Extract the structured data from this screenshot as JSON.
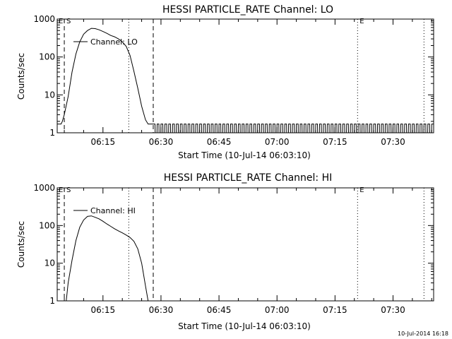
{
  "chart_data": [
    {
      "type": "line",
      "title": "HESSI PARTICLE_RATE Channel: LO",
      "xlabel": "Start Time (10-Jul-14 06:03:10)",
      "ylabel": "Counts/sec",
      "y_scale": "log",
      "ylim": [
        1,
        1000
      ],
      "xlim": [
        "06:03:10",
        "07:40:30"
      ],
      "x_ticks": [
        "06:15",
        "06:30",
        "06:45",
        "07:00",
        "07:15",
        "07:30"
      ],
      "y_ticks": [
        "1",
        "10",
        "100",
        "1000"
      ],
      "legend": {
        "entries": [
          "Channel: LO"
        ],
        "placement": "top-left"
      },
      "grid": false,
      "vlines": [
        {
          "time": "06:05:00",
          "style": "dashed",
          "label": "S"
        },
        {
          "time": "06:21:40",
          "style": "dotted",
          "label": ""
        },
        {
          "time": "06:28:00",
          "style": "dashed",
          "label": ""
        },
        {
          "time": "07:20:50",
          "style": "dotted",
          "label": "E"
        },
        {
          "time": "07:38:00",
          "style": "dotted",
          "label": ""
        }
      ],
      "series": [
        {
          "name": "Channel: LO",
          "x": [
            "06:03:10",
            "06:04:10",
            "06:04:30",
            "06:05:00",
            "06:06:00",
            "06:07:00",
            "06:08:00",
            "06:09:00",
            "06:10:00",
            "06:11:00",
            "06:12:00",
            "06:13:00",
            "06:14:00",
            "06:15:00",
            "06:16:00",
            "06:17:00",
            "06:18:00",
            "06:19:00",
            "06:20:00",
            "06:21:00",
            "06:22:00",
            "06:23:00",
            "06:24:00",
            "06:25:00",
            "06:26:00",
            "06:26:40",
            "06:27:00",
            "06:27:20",
            "06:28:00"
          ],
          "y": [
            1.7,
            1.7,
            2.0,
            3.0,
            9,
            40,
            120,
            250,
            400,
            500,
            570,
            560,
            520,
            470,
            420,
            370,
            340,
            300,
            250,
            190,
            110,
            42,
            15,
            5,
            2.2,
            1.7,
            1.7,
            1.7,
            1.7
          ]
        },
        {
          "name": "Channel: LO",
          "segment": "background (alternating 1 / 1.7 counts/sec)",
          "x_range": [
            "06:28:00",
            "07:40:30"
          ],
          "values": [
            1,
            1.7
          ]
        }
      ]
    },
    {
      "type": "line",
      "title": "HESSI PARTICLE_RATE Channel: HI",
      "xlabel": "Start Time (10-Jul-14 06:03:10)",
      "ylabel": "Counts/sec",
      "y_scale": "log",
      "ylim": [
        1,
        1000
      ],
      "xlim": [
        "06:03:10",
        "07:40:30"
      ],
      "x_ticks": [
        "06:15",
        "06:30",
        "06:45",
        "07:00",
        "07:15",
        "07:30"
      ],
      "y_ticks": [
        "1",
        "10",
        "100",
        "1000"
      ],
      "legend": {
        "entries": [
          "Channel: HI"
        ],
        "placement": "top-left"
      },
      "grid": false,
      "vlines": [
        {
          "time": "06:05:00",
          "style": "dashed",
          "label": "S"
        },
        {
          "time": "06:21:40",
          "style": "dotted",
          "label": ""
        },
        {
          "time": "06:28:00",
          "style": "dashed",
          "label": ""
        },
        {
          "time": "07:20:50",
          "style": "dotted",
          "label": "E"
        },
        {
          "time": "07:38:00",
          "style": "dotted",
          "label": ""
        }
      ],
      "series": [
        {
          "name": "Channel: HI",
          "x": [
            "06:05:30",
            "06:06:00",
            "06:07:00",
            "06:08:00",
            "06:09:00",
            "06:10:00",
            "06:11:00",
            "06:12:00",
            "06:13:00",
            "06:14:00",
            "06:15:00",
            "06:16:00",
            "06:17:00",
            "06:18:00",
            "06:19:00",
            "06:20:00",
            "06:21:00",
            "06:22:00",
            "06:23:00",
            "06:24:00",
            "06:25:00",
            "06:26:00",
            "06:26:40"
          ],
          "y": [
            1,
            3,
            12,
            40,
            90,
            140,
            175,
            180,
            165,
            150,
            130,
            110,
            95,
            82,
            72,
            64,
            56,
            48,
            38,
            24,
            10,
            2.5,
            1
          ]
        }
      ]
    }
  ],
  "corner_label_left": "E",
  "timestamp": "10-Jul-2014 16:18"
}
